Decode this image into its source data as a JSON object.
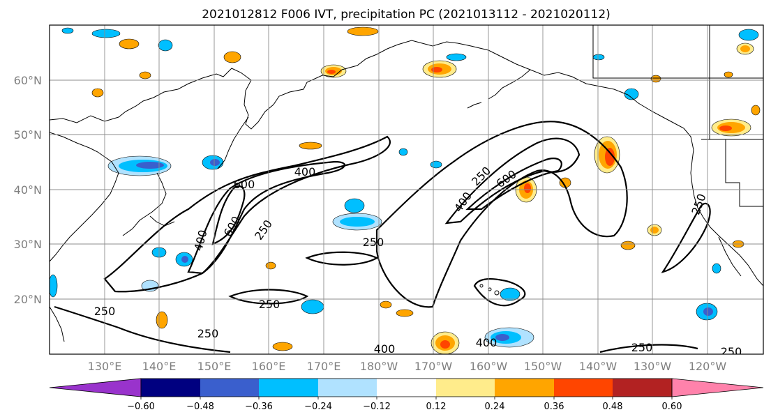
{
  "title": "2021012812 F006 IVT, precipitation PC (2021013112 - 2021020112)",
  "map": {
    "lat_ticks": [
      "60°N",
      "50°N",
      "40°N",
      "30°N",
      "20°N"
    ],
    "lon_ticks": [
      "130°E",
      "140°E",
      "150°E",
      "160°E",
      "170°E",
      "180°W",
      "170°W",
      "160°W",
      "150°W",
      "140°W",
      "130°W",
      "120°W"
    ],
    "contour_labels": [
      "400",
      "600",
      "600",
      "400",
      "250",
      "250",
      "250",
      "250",
      "400",
      "250",
      "600",
      "250",
      "400",
      "400",
      "250",
      "250",
      "250"
    ],
    "colors": {
      "coastline": "#000000",
      "contour": "#000000",
      "grid": "#8c8c8c"
    }
  },
  "colorbar": {
    "tick_labels": [
      "−0.60",
      "−0.48",
      "−0.36",
      "−0.24",
      "−0.12",
      "0.12",
      "0.24",
      "0.36",
      "0.48",
      "0.60"
    ],
    "colors": [
      "#9933cc",
      "#000080",
      "#3a5fcd",
      "#00bfff",
      "#b0e2ff",
      "#ffffff",
      "#ffec8b",
      "#ffa500",
      "#ff4500",
      "#b22222",
      "#ff82ab"
    ]
  }
}
